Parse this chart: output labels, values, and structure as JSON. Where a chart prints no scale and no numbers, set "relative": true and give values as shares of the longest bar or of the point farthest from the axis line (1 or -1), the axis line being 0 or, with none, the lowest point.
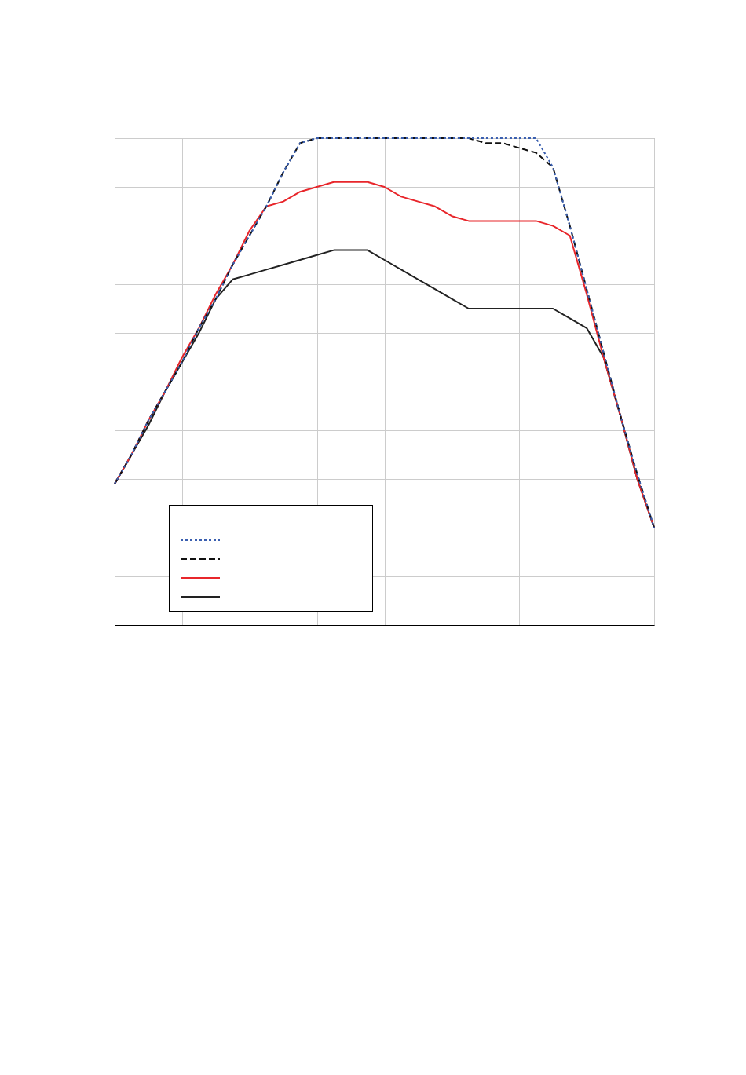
{
  "chart_data": {
    "type": "line",
    "relative": true,
    "grid": true,
    "categories": [
      null,
      null,
      null,
      null,
      null,
      null,
      null,
      null,
      null,
      null,
      null,
      null,
      null,
      null,
      null,
      null,
      null,
      null,
      null,
      null,
      null,
      null,
      null,
      null,
      null,
      null,
      null,
      null,
      null,
      null,
      null,
      null,
      null
    ],
    "series": [
      {
        "color": "#3a5fb0",
        "line_style": "dotted",
        "values": [
          0.29,
          0.35,
          0.42,
          0.48,
          0.54,
          0.61,
          0.67,
          0.74,
          0.8,
          0.86,
          0.93,
          0.99,
          1,
          1,
          1,
          1,
          1,
          1,
          1,
          1,
          1,
          1,
          1,
          1,
          1,
          1,
          0.94,
          0.82,
          0.69,
          0.56,
          0.43,
          0.31,
          0.2
        ]
      },
      {
        "color": "#111111",
        "line_style": "dashed",
        "values": [
          0.29,
          0.35,
          0.42,
          0.48,
          0.54,
          0.61,
          0.67,
          0.74,
          0.8,
          0.86,
          0.93,
          0.99,
          1,
          1,
          1,
          1,
          1,
          1,
          1,
          1,
          1,
          1,
          0.99,
          0.99,
          0.98,
          0.97,
          0.94,
          0.82,
          0.69,
          0.56,
          0.43,
          0.31,
          0.2
        ]
      },
      {
        "color": "#e8262b",
        "line_style": "solid",
        "values": [
          0.29,
          0.35,
          0.42,
          0.48,
          0.55,
          0.61,
          0.68,
          0.74,
          0.81,
          0.86,
          0.87,
          0.89,
          0.9,
          0.91,
          0.91,
          0.91,
          0.9,
          0.88,
          0.87,
          0.86,
          0.84,
          0.83,
          0.83,
          0.83,
          0.83,
          0.83,
          0.82,
          0.8,
          0.68,
          0.55,
          0.43,
          0.3,
          0.2
        ]
      },
      {
        "color": "#222222",
        "line_style": "solid",
        "values": [
          0.29,
          0.35,
          0.41,
          0.48,
          0.54,
          0.6,
          0.67,
          0.71,
          0.72,
          0.73,
          0.74,
          0.75,
          0.76,
          0.77,
          0.77,
          0.77,
          0.75,
          0.73,
          0.71,
          0.69,
          0.67,
          0.65,
          0.65,
          0.65,
          0.65,
          0.65,
          0.65,
          0.63,
          0.61,
          0.55,
          0.43,
          0.3,
          0.2
        ]
      }
    ]
  }
}
